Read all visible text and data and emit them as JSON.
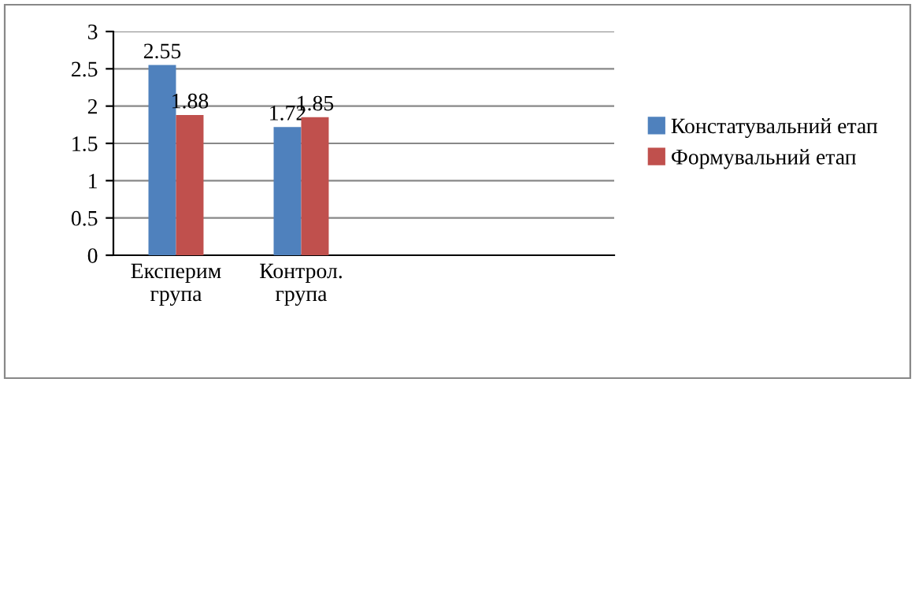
{
  "chart_data": {
    "type": "bar",
    "categories": [
      "Експерим\nгрупа",
      "Контрол.\nгрупа",
      null,
      null
    ],
    "series": [
      {
        "name": "Констатувальний етап",
        "color": "#4f81bd",
        "values": [
          2.55,
          1.72,
          null,
          null
        ]
      },
      {
        "name": "Формувальний етап",
        "color": "#c0504d",
        "values": [
          1.88,
          1.85,
          null,
          null
        ]
      }
    ],
    "ylim": [
      0,
      3
    ],
    "yticks": [
      0,
      0.5,
      1,
      1.5,
      2,
      2.5,
      3
    ],
    "grid": "y",
    "legend": "right",
    "data_labels": true
  }
}
